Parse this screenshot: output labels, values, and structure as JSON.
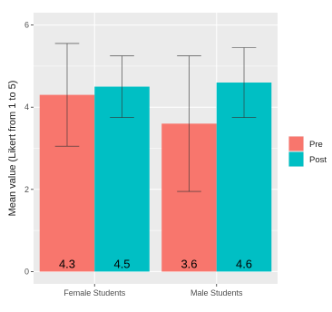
{
  "chart_data": {
    "type": "bar",
    "categories": [
      "Female Students",
      "Male Students"
    ],
    "series": [
      {
        "name": "Pre",
        "color": "#f8766d",
        "values": [
          4.3,
          3.6
        ],
        "error_low": [
          3.05,
          1.95
        ],
        "error_high": [
          5.55,
          5.25
        ],
        "labels": [
          "4.3",
          "3.6"
        ]
      },
      {
        "name": "Post",
        "color": "#00bfc4",
        "values": [
          4.5,
          4.6
        ],
        "error_low": [
          3.75,
          3.75
        ],
        "error_high": [
          5.25,
          5.45
        ],
        "labels": [
          "4.5",
          "4.6"
        ]
      }
    ],
    "ylabel": "Mean value (Likert from 1 to 5)",
    "xlabel": "",
    "ylim": [
      -0.3,
      6.3
    ],
    "y_ticks": [
      0,
      2,
      4,
      6
    ],
    "y_tick_labels": [
      "0",
      "2",
      "4",
      "6"
    ],
    "grid": true,
    "legend_position": "right",
    "panel_background": "#ebebeb",
    "grid_color": "#ffffff"
  }
}
